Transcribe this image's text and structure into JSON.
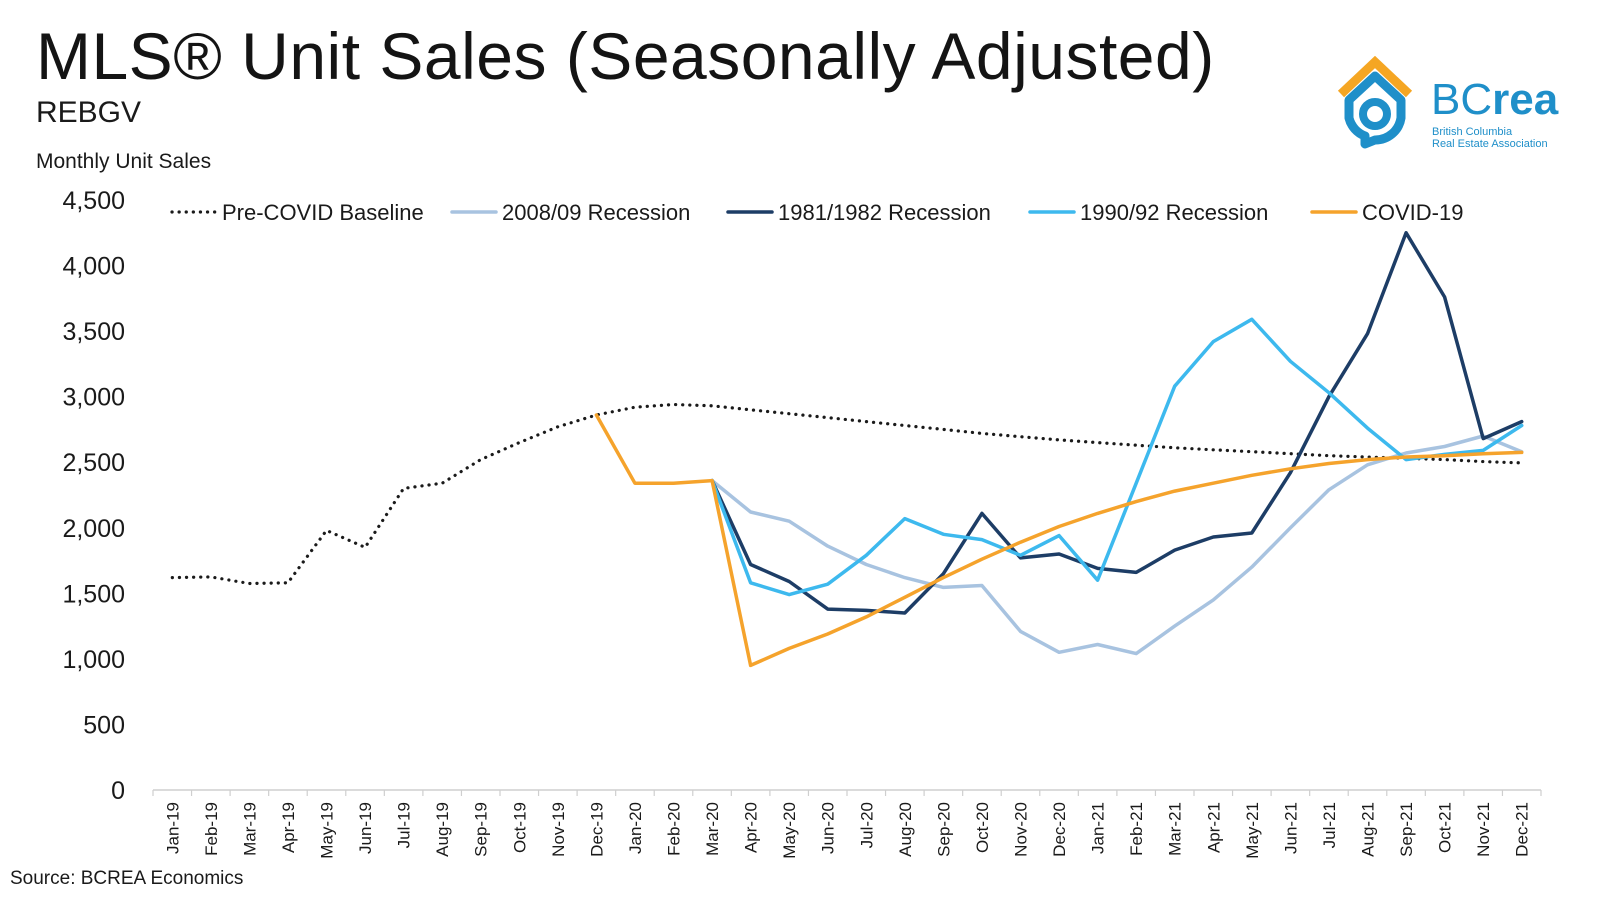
{
  "header": {
    "title": "MLS® Unit Sales (Seasonally Adjusted)",
    "subtitle": "REBGV",
    "y_axis_title": "Monthly Unit Sales"
  },
  "footer": {
    "source": "Source: BCREA Economics"
  },
  "logo": {
    "word_thin": "BC",
    "word_bold": "rea",
    "tagline_1": "British Columbia",
    "tagline_2": "Real Estate Association",
    "icon": "house-icon",
    "colors": {
      "roof": "#f5a623",
      "house": "#1f8fc9"
    }
  },
  "chart_data": {
    "type": "line",
    "ylabel": "Monthly Unit Sales",
    "ylim": [
      0,
      4500
    ],
    "yticks": [
      0,
      500,
      1000,
      1500,
      2000,
      2500,
      3000,
      3500,
      4000,
      4500
    ],
    "ytick_labels": [
      "0",
      "500",
      "1,000",
      "1,500",
      "2,000",
      "2,500",
      "3,000",
      "3,500",
      "4,000",
      "4,500"
    ],
    "grid": false,
    "legend_position": "top",
    "categories": [
      "Jan-19",
      "Feb-19",
      "Mar-19",
      "Apr-19",
      "May-19",
      "Jun-19",
      "Jul-19",
      "Aug-19",
      "Sep-19",
      "Oct-19",
      "Nov-19",
      "Dec-19",
      "Jan-20",
      "Feb-20",
      "Mar-20",
      "Apr-20",
      "May-20",
      "Jun-20",
      "Jul-20",
      "Aug-20",
      "Sep-20",
      "Oct-20",
      "Nov-20",
      "Dec-20",
      "Jan-21",
      "Feb-21",
      "Mar-21",
      "Apr-21",
      "May-21",
      "Jun-21",
      "Jul-21",
      "Aug-21",
      "Sep-21",
      "Oct-21",
      "Nov-21",
      "Dec-21"
    ],
    "series": [
      {
        "name": "Pre-COVID Baseline",
        "color": "#1a1a1a",
        "style": "dotted",
        "values": [
          1620,
          1625,
          1575,
          1580,
          1980,
          1850,
          2300,
          2340,
          2520,
          2650,
          2770,
          2860,
          2920,
          2940,
          2930,
          2900,
          2870,
          2840,
          2810,
          2780,
          2750,
          2720,
          2695,
          2670,
          2650,
          2630,
          2610,
          2595,
          2580,
          2565,
          2550,
          2540,
          2530,
          2520,
          2505,
          2495
        ]
      },
      {
        "name": "2008/09 Recession",
        "color": "#a8c3e0",
        "style": "solid",
        "values": [
          null,
          null,
          null,
          null,
          null,
          null,
          null,
          null,
          null,
          null,
          null,
          null,
          null,
          null,
          2360,
          2120,
          2050,
          1860,
          1720,
          1620,
          1545,
          1560,
          1210,
          1050,
          1110,
          1040,
          1250,
          1450,
          1700,
          2000,
          2290,
          2480,
          2570,
          2620,
          2700,
          2580
        ]
      },
      {
        "name": "1981/1982 Recession",
        "color": "#1d3d66",
        "style": "solid",
        "values": [
          null,
          null,
          null,
          null,
          null,
          null,
          null,
          null,
          null,
          null,
          null,
          null,
          null,
          null,
          2360,
          1720,
          1590,
          1380,
          1370,
          1350,
          1650,
          2110,
          1770,
          1800,
          1690,
          1660,
          1830,
          1930,
          1960,
          2420,
          3000,
          3480,
          4250,
          3760,
          2680,
          2810
        ]
      },
      {
        "name": "1990/92 Recession",
        "color": "#3db9ee",
        "style": "solid",
        "values": [
          null,
          null,
          null,
          null,
          null,
          null,
          null,
          null,
          null,
          null,
          null,
          null,
          null,
          null,
          2360,
          1580,
          1490,
          1570,
          1790,
          2070,
          1950,
          1910,
          1790,
          1940,
          1600,
          2340,
          3080,
          3420,
          3590,
          3270,
          3030,
          2760,
          2520,
          2560,
          2590,
          2780
        ]
      },
      {
        "name": "COVID-19",
        "color": "#f5a32c",
        "style": "solid",
        "values": [
          null,
          null,
          null,
          null,
          null,
          null,
          null,
          null,
          null,
          null,
          null,
          2860,
          2340,
          2340,
          2360,
          950,
          1080,
          1190,
          1320,
          1470,
          1620,
          1760,
          1890,
          2010,
          2110,
          2200,
          2280,
          2340,
          2400,
          2450,
          2490,
          2520,
          2540,
          2550,
          2565,
          2575
        ]
      }
    ]
  }
}
